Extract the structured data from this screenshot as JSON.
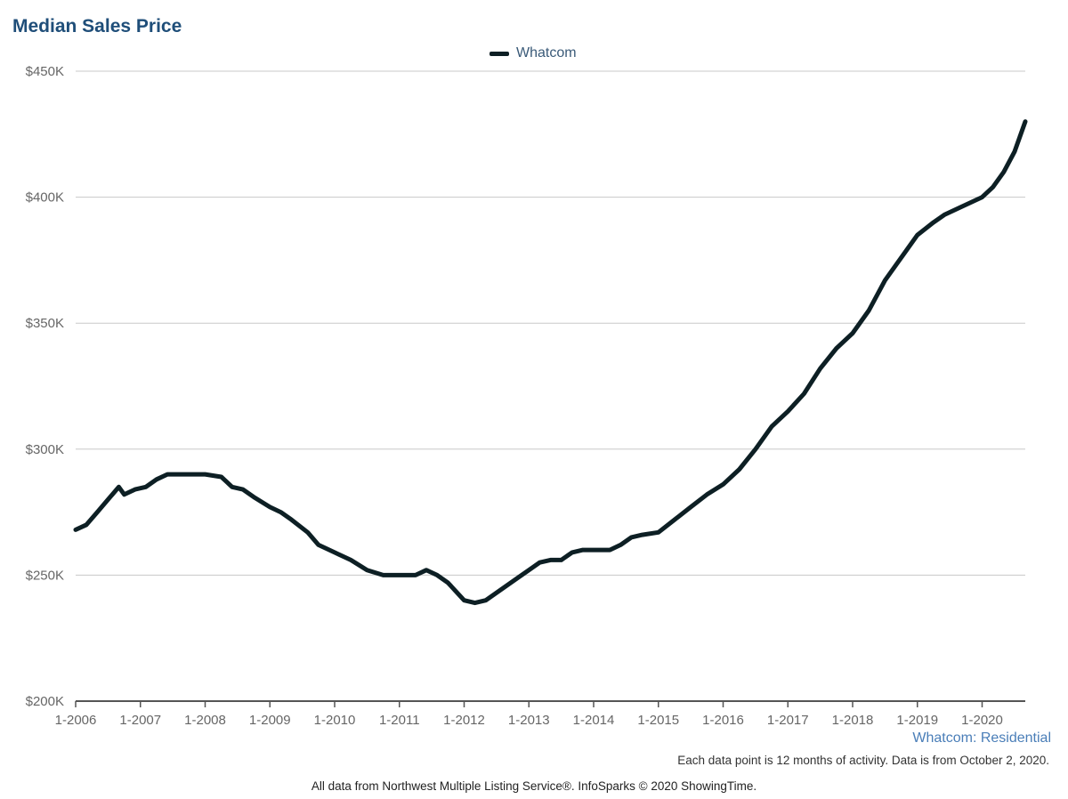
{
  "chart_data": {
    "type": "line",
    "title": "Median Sales Price",
    "xlabel": "",
    "ylabel": "",
    "ylim": [
      200000,
      450000
    ],
    "y_ticks": [
      200000,
      250000,
      300000,
      350000,
      400000,
      450000
    ],
    "y_tick_labels": [
      "$200K",
      "$250K",
      "$300K",
      "$350K",
      "$400K",
      "$450K"
    ],
    "x_tick_labels": [
      "1-2006",
      "1-2007",
      "1-2008",
      "1-2009",
      "1-2010",
      "1-2011",
      "1-2012",
      "1-2013",
      "1-2014",
      "1-2015",
      "1-2016",
      "1-2017",
      "1-2018",
      "1-2019",
      "1-2020"
    ],
    "x_tick_dates": [
      "2006-01",
      "2007-01",
      "2008-01",
      "2009-01",
      "2010-01",
      "2011-01",
      "2012-01",
      "2013-01",
      "2014-01",
      "2015-01",
      "2016-01",
      "2017-01",
      "2018-01",
      "2019-01",
      "2020-01"
    ],
    "xlim": [
      "2006-01",
      "2020-09"
    ],
    "grid": true,
    "legend_position": "top-center",
    "series": [
      {
        "name": "Whatcom",
        "color": "#0d1f24",
        "points": [
          [
            "2006-01",
            268000
          ],
          [
            "2006-03",
            270000
          ],
          [
            "2006-05",
            275000
          ],
          [
            "2006-07",
            280000
          ],
          [
            "2006-09",
            285000
          ],
          [
            "2006-10",
            282000
          ],
          [
            "2006-12",
            284000
          ],
          [
            "2007-02",
            285000
          ],
          [
            "2007-04",
            288000
          ],
          [
            "2007-06",
            290000
          ],
          [
            "2007-09",
            290000
          ],
          [
            "2008-01",
            290000
          ],
          [
            "2008-04",
            289000
          ],
          [
            "2008-06",
            285000
          ],
          [
            "2008-08",
            284000
          ],
          [
            "2008-10",
            281000
          ],
          [
            "2009-01",
            277000
          ],
          [
            "2009-03",
            275000
          ],
          [
            "2009-05",
            272000
          ],
          [
            "2009-08",
            267000
          ],
          [
            "2009-10",
            262000
          ],
          [
            "2010-01",
            259000
          ],
          [
            "2010-04",
            256000
          ],
          [
            "2010-07",
            252000
          ],
          [
            "2010-10",
            250000
          ],
          [
            "2011-01",
            250000
          ],
          [
            "2011-04",
            250000
          ],
          [
            "2011-06",
            252000
          ],
          [
            "2011-08",
            250000
          ],
          [
            "2011-10",
            247000
          ],
          [
            "2012-01",
            240000
          ],
          [
            "2012-03",
            239000
          ],
          [
            "2012-05",
            240000
          ],
          [
            "2012-07",
            243000
          ],
          [
            "2012-09",
            246000
          ],
          [
            "2012-11",
            249000
          ],
          [
            "2013-01",
            252000
          ],
          [
            "2013-03",
            255000
          ],
          [
            "2013-05",
            256000
          ],
          [
            "2013-07",
            256000
          ],
          [
            "2013-09",
            259000
          ],
          [
            "2013-11",
            260000
          ],
          [
            "2014-01",
            260000
          ],
          [
            "2014-04",
            260000
          ],
          [
            "2014-06",
            262000
          ],
          [
            "2014-08",
            265000
          ],
          [
            "2014-10",
            266000
          ],
          [
            "2015-01",
            267000
          ],
          [
            "2015-04",
            272000
          ],
          [
            "2015-07",
            277000
          ],
          [
            "2015-10",
            282000
          ],
          [
            "2016-01",
            286000
          ],
          [
            "2016-04",
            292000
          ],
          [
            "2016-07",
            300000
          ],
          [
            "2016-10",
            309000
          ],
          [
            "2017-01",
            315000
          ],
          [
            "2017-04",
            322000
          ],
          [
            "2017-07",
            332000
          ],
          [
            "2017-10",
            340000
          ],
          [
            "2018-01",
            346000
          ],
          [
            "2018-04",
            355000
          ],
          [
            "2018-07",
            367000
          ],
          [
            "2018-10",
            376000
          ],
          [
            "2019-01",
            385000
          ],
          [
            "2019-04",
            390000
          ],
          [
            "2019-06",
            393000
          ],
          [
            "2019-09",
            396000
          ],
          [
            "2020-01",
            400000
          ],
          [
            "2020-03",
            404000
          ],
          [
            "2020-05",
            410000
          ],
          [
            "2020-07",
            418000
          ],
          [
            "2020-09",
            430000
          ]
        ]
      }
    ]
  },
  "footer": {
    "region_label": "Whatcom: Residential",
    "note": "Each data point is 12 months of activity. Data is from October 2, 2020.",
    "source": "All data from Northwest Multiple Listing Service®. InfoSparks © 2020 ShowingTime."
  }
}
